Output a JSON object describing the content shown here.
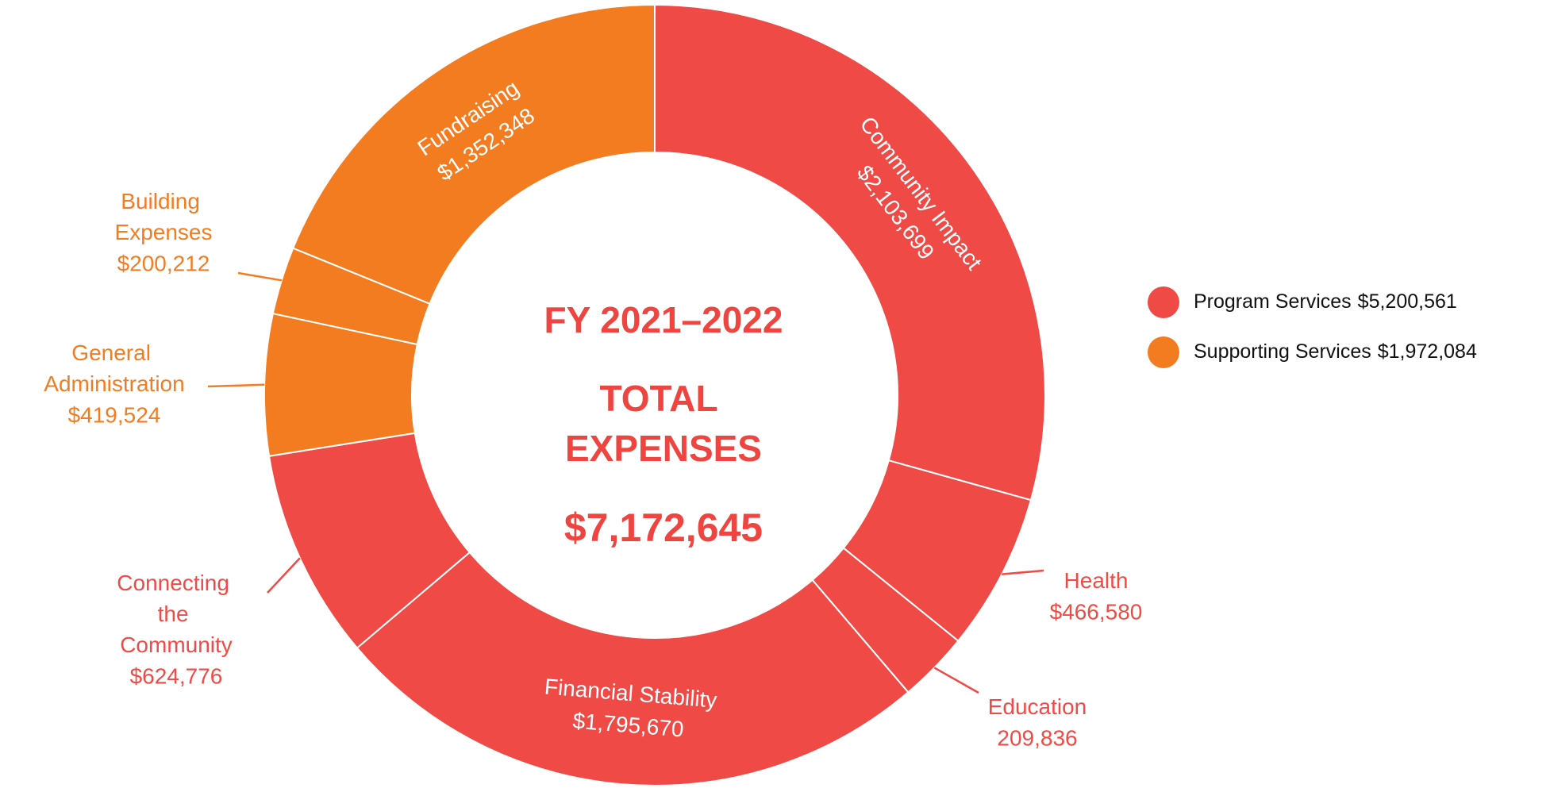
{
  "chart_data": {
    "type": "donut",
    "title": "FY 2021–2022",
    "subtitle": "TOTAL EXPENSES",
    "total": 7172645,
    "total_label": "$7,172,645",
    "categories": [
      "Community Impact",
      "Health",
      "Education",
      "Financial Stability",
      "Connecting the Community",
      "General Administration",
      "Building Expenses",
      "Fundraising"
    ],
    "values": [
      2103699,
      466580,
      209836,
      1795670,
      624776,
      419524,
      200212,
      1352348
    ],
    "value_labels": [
      "$2,103,699",
      "$466,580",
      "209,836",
      "$1,795,670",
      "$624,776",
      "$419,524",
      "$200,212",
      "$1,352,348"
    ],
    "colors": [
      "#ef4a45",
      "#ef4a45",
      "#ef4a45",
      "#ef4a45",
      "#ef4a45",
      "#f47c20",
      "#f47c20",
      "#f47c20"
    ],
    "legend": [
      {
        "name": "Program Services",
        "value": 5200561,
        "value_label": "$5,200,561",
        "color": "#ef4a45"
      },
      {
        "name": "Supporting Services",
        "value": 1972084,
        "value_label": "$1,972,084",
        "color": "#f47c20"
      }
    ]
  }
}
